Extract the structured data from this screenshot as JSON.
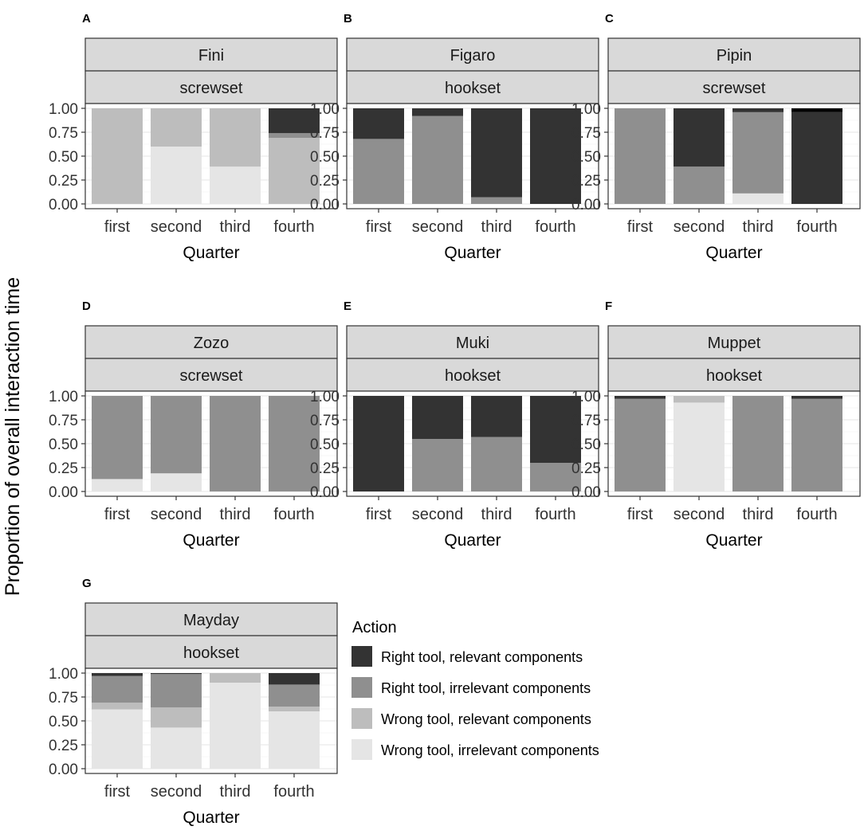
{
  "figure": {
    "y_axis_label": "Proportion of overall interaction time",
    "x_axis_label": "Quarter"
  },
  "legend": {
    "title": "Action"
  },
  "chart_data": {
    "type": "bar",
    "stacked": true,
    "categories": [
      "first",
      "second",
      "third",
      "fourth"
    ],
    "xlabel": "Quarter",
    "ylabel": "Proportion of overall interaction time",
    "ylim": [
      0,
      1
    ],
    "yticks": [
      "0.00",
      "0.25",
      "0.50",
      "0.75",
      "1.00"
    ],
    "grid": true,
    "legend_position": "right",
    "actions": [
      {
        "name": "Wrong tool, irrelevant components",
        "color": "#e5e5e5"
      },
      {
        "name": "Wrong tool, relevant components",
        "color": "#bdbdbd"
      },
      {
        "name": "Right tool, irrelevant components",
        "color": "#8f8f8f"
      },
      {
        "name": "Right tool, relevant components",
        "color": "#333333"
      },
      {
        "name": "",
        "color": "#000000"
      }
    ],
    "panels": [
      {
        "letter": "A",
        "name": "Fini",
        "set": "screwset",
        "series": [
          {
            "name": "Wrong tool, irrelevant components",
            "values": [
              0,
              0.6,
              0.39,
              0
            ]
          },
          {
            "name": "Wrong tool, relevant components",
            "values": [
              1.0,
              0.4,
              0.61,
              0.69
            ]
          },
          {
            "name": "Right tool, irrelevant components",
            "values": [
              0,
              0,
              0,
              0.05
            ]
          },
          {
            "name": "Right tool, relevant components",
            "values": [
              0,
              0,
              0,
              0.26
            ]
          }
        ]
      },
      {
        "letter": "B",
        "name": "Figaro",
        "set": "hookset",
        "series": [
          {
            "name": "Wrong tool, irrelevant components",
            "values": [
              0,
              0,
              0,
              0
            ]
          },
          {
            "name": "Wrong tool, relevant components",
            "values": [
              0,
              0,
              0,
              0
            ]
          },
          {
            "name": "Right tool, irrelevant components",
            "values": [
              0.68,
              0.92,
              0.07,
              0
            ]
          },
          {
            "name": "Right tool, relevant components",
            "values": [
              0.32,
              0.08,
              0.93,
              1.0
            ]
          }
        ]
      },
      {
        "letter": "C",
        "name": "Pipin",
        "set": "screwset",
        "series": [
          {
            "name": "Wrong tool, irrelevant components",
            "values": [
              0,
              0,
              0.11,
              0
            ]
          },
          {
            "name": "Wrong tool, relevant components",
            "values": [
              0,
              0,
              0,
              0
            ]
          },
          {
            "name": "Right tool, irrelevant components",
            "values": [
              1.0,
              0.39,
              0.85,
              0
            ]
          },
          {
            "name": "Right tool, relevant components",
            "values": [
              0,
              0.61,
              0.04,
              0.96
            ]
          },
          {
            "name": "",
            "values": [
              0,
              0,
              0,
              0.04
            ]
          }
        ]
      },
      {
        "letter": "D",
        "name": "Zozo",
        "set": "screwset",
        "series": [
          {
            "name": "Wrong tool, irrelevant components",
            "values": [
              0.13,
              0.19,
              0,
              0
            ]
          },
          {
            "name": "Wrong tool, relevant components",
            "values": [
              0,
              0,
              0,
              0
            ]
          },
          {
            "name": "Right tool, irrelevant components",
            "values": [
              0.87,
              0.81,
              1.0,
              1.0
            ]
          },
          {
            "name": "Right tool, relevant components",
            "values": [
              0,
              0,
              0,
              0
            ]
          }
        ]
      },
      {
        "letter": "E",
        "name": "Muki",
        "set": "hookset",
        "series": [
          {
            "name": "Wrong tool, irrelevant components",
            "values": [
              0,
              0,
              0,
              0
            ]
          },
          {
            "name": "Wrong tool, relevant components",
            "values": [
              0,
              0,
              0,
              0
            ]
          },
          {
            "name": "Right tool, irrelevant components",
            "values": [
              0,
              0.55,
              0.57,
              0.3
            ]
          },
          {
            "name": "Right tool, relevant components",
            "values": [
              1.0,
              0.45,
              0.43,
              0.7
            ]
          }
        ]
      },
      {
        "letter": "F",
        "name": "Muppet",
        "set": "hookset",
        "series": [
          {
            "name": "Wrong tool, irrelevant components",
            "values": [
              0,
              0.93,
              0,
              0
            ]
          },
          {
            "name": "Wrong tool, relevant components",
            "values": [
              0,
              0.07,
              0,
              0
            ]
          },
          {
            "name": "Right tool, irrelevant components",
            "values": [
              0.97,
              0,
              1.0,
              0.97
            ]
          },
          {
            "name": "Right tool, relevant components",
            "values": [
              0.03,
              0,
              0,
              0.03
            ]
          }
        ]
      },
      {
        "letter": "G",
        "name": "Mayday",
        "set": "hookset",
        "series": [
          {
            "name": "Wrong tool, irrelevant components",
            "values": [
              0.62,
              0.43,
              0.9,
              0.6
            ]
          },
          {
            "name": "Wrong tool, relevant components",
            "values": [
              0.07,
              0.21,
              0.1,
              0.05
            ]
          },
          {
            "name": "Right tool, irrelevant components",
            "values": [
              0.28,
              0.35,
              0,
              0.23
            ]
          },
          {
            "name": "Right tool, relevant components",
            "values": [
              0.03,
              0.01,
              0,
              0.12
            ]
          }
        ]
      }
    ]
  }
}
